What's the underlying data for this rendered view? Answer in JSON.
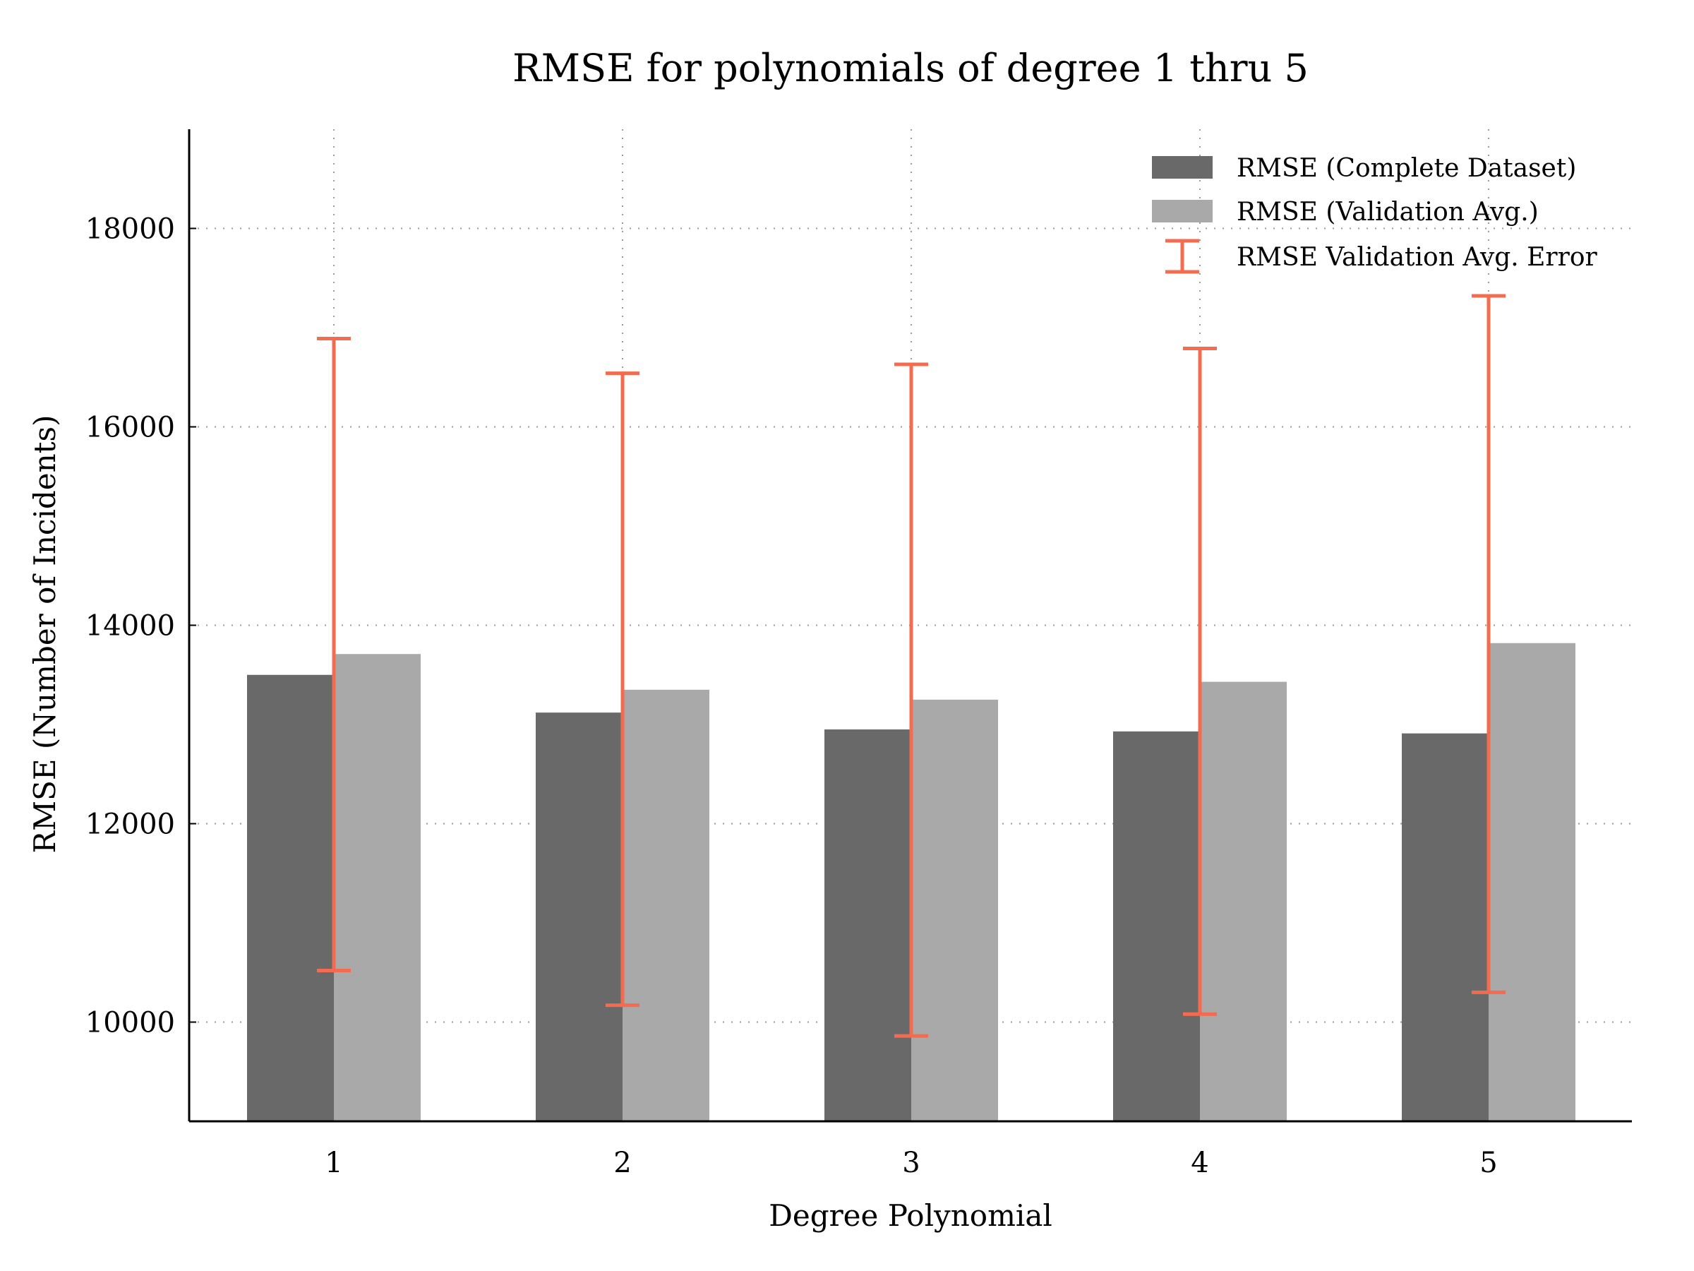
{
  "chart_data": {
    "type": "bar",
    "title": "RMSE for polynomials of degree 1 thru 5",
    "xlabel": "Degree Polynomial",
    "ylabel": "RMSE (Number of Incidents)",
    "categories": [
      "1",
      "2",
      "3",
      "4",
      "5"
    ],
    "ylim": [
      9000,
      19000
    ],
    "yticks": [
      10000,
      12000,
      14000,
      16000,
      18000
    ],
    "grid": true,
    "legend_position": "top-right",
    "colors": {
      "complete": "#696969",
      "validation": "#a9a9a9",
      "error": "#f46b4f",
      "grid": "#9b9b9b"
    },
    "series": [
      {
        "name": "RMSE (Complete Dataset)",
        "values": [
          13500,
          13120,
          12950,
          12930,
          12910
        ]
      },
      {
        "name": "RMSE (Validation Avg.)",
        "values": [
          13710,
          13350,
          13250,
          13430,
          13820
        ]
      }
    ],
    "error_bars": {
      "name": "RMSE Validation Avg. Error",
      "centers": [
        13700,
        13350,
        13240,
        13430,
        13810
      ],
      "lower": [
        10520,
        10170,
        9860,
        10080,
        10300
      ],
      "upper": [
        16890,
        16540,
        16630,
        16790,
        17320
      ]
    }
  }
}
